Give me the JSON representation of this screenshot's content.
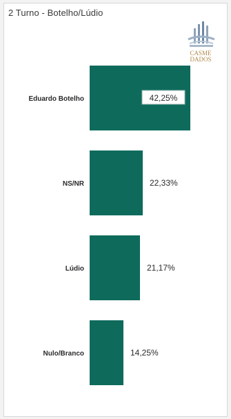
{
  "panel": {
    "title": "2 Turno - Botelho/Lúdio"
  },
  "logo": {
    "icon": "institution-logo-icon",
    "line1": "CASME",
    "line2": "DADOS"
  },
  "colors": {
    "bar": "#0e6b5c",
    "label_box_border": "#9fb9b2",
    "text": "#2a2a2a"
  },
  "chart_data": {
    "type": "bar",
    "orientation": "horizontal",
    "categories": [
      "Eduardo Botelho",
      "NS/NR",
      "Lúdio",
      "Nulo/Branco"
    ],
    "values": [
      42.25,
      22.33,
      21.17,
      14.25
    ],
    "value_labels": [
      "42,25%",
      "22,33%",
      "21,17%",
      "14,25%"
    ],
    "title": "2 Turno - Botelho/Lúdio",
    "xlim": [
      0,
      42.25
    ],
    "grid": false,
    "legend": "none"
  }
}
